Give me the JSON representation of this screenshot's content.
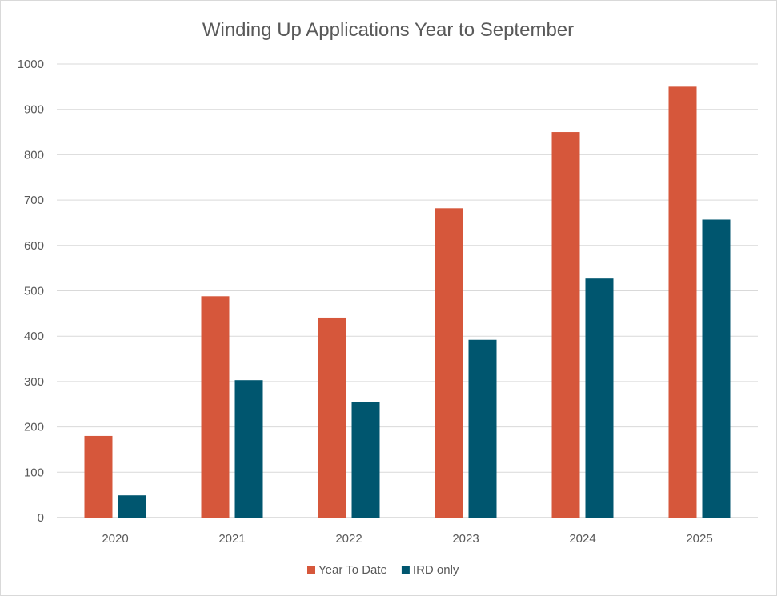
{
  "chart_data": {
    "type": "bar",
    "title": "Winding Up Applications Year to September",
    "xlabel": "",
    "ylabel": "",
    "categories": [
      "2020",
      "2021",
      "2022",
      "2023",
      "2024",
      "2025"
    ],
    "series": [
      {
        "name": "Year To Date",
        "color": "#D6573B",
        "values": [
          180,
          488,
          441,
          682,
          850,
          950
        ]
      },
      {
        "name": "IRD only",
        "color": "#00566F",
        "values": [
          49,
          303,
          254,
          392,
          527,
          657
        ]
      }
    ],
    "ylim": [
      0,
      1000
    ],
    "yticks": [
      "0",
      "100",
      "200",
      "300",
      "400",
      "500",
      "600",
      "700",
      "800",
      "900",
      "1000"
    ],
    "grid": true,
    "legend": "bottom"
  }
}
